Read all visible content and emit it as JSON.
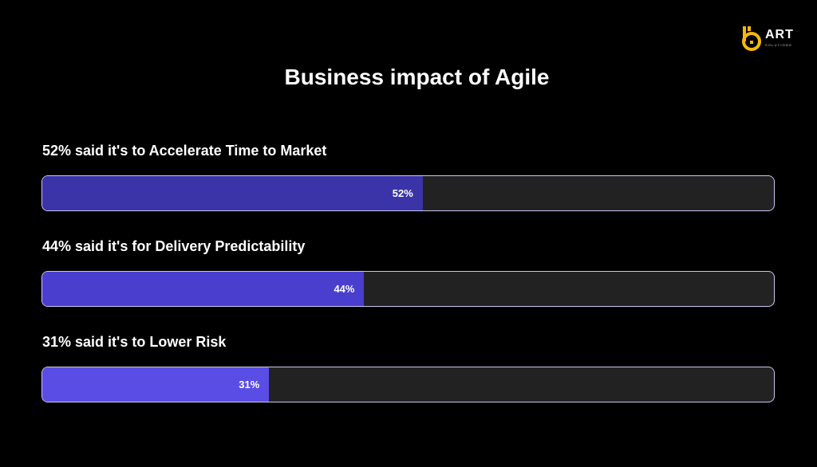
{
  "brand": {
    "name": "ART",
    "tagline": "SOLUTIONS",
    "accent_color": "#F5B80C"
  },
  "chart_data": {
    "type": "bar",
    "orientation": "horizontal",
    "title": "Business impact of Agile",
    "xlim": [
      0,
      100
    ],
    "grid": false,
    "categories": [
      "52% said it's to Accelerate Time to Market",
      "44% said it's for Delivery Predictability",
      "31% said it's to Lower Risk"
    ],
    "values": [
      52,
      44,
      31
    ],
    "data_labels": [
      "52%",
      "44%",
      "31%"
    ],
    "colors": [
      "#3B34A8",
      "#4A3ECF",
      "#5A4DE6"
    ],
    "track_color": "#222222"
  }
}
